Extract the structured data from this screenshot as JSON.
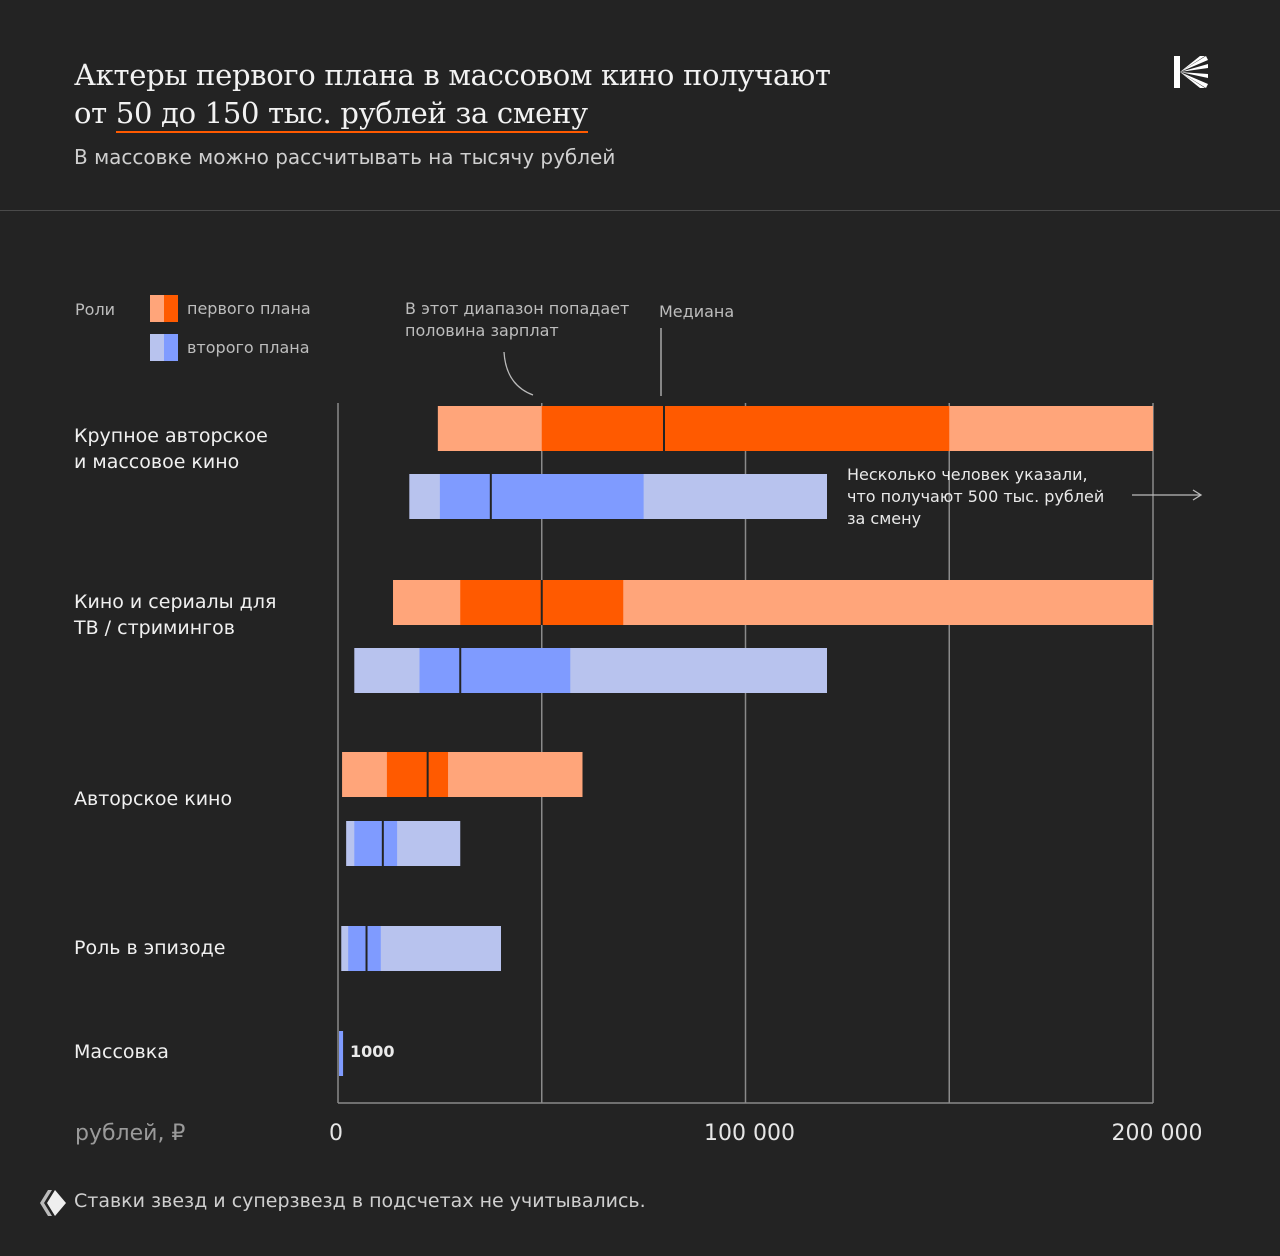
{
  "header": {
    "title_line1": "Актеры первого плана в массовом кино получают",
    "title_line2_prefix": "от ",
    "title_line2_highlight": "50 до 150 тыс. рублей за смену",
    "subtitle": "В массовке можно рассчитывать на тысячу рублей",
    "logo": "kommersant-style-k-logo"
  },
  "footer": {
    "note": "Ставки звезд и суперзвезд в подсчетах не учитывались.",
    "icon": "diamond-logo-icon"
  },
  "colors": {
    "background": "#232323",
    "primary_light": "#FFA57A",
    "primary": "#FF5A00",
    "secondary_light": "#B8C3EE",
    "secondary": "#7F9BFF",
    "grid": "#8a8a8a"
  },
  "chart_data": {
    "type": "range-bar",
    "title": "Актеры первого плана в массовом кино получают от 50 до 150 тыс. рублей за смену",
    "subtitle": "В массовке можно рассчитывать на тысячу рублей",
    "xlabel": "рублей, ₽",
    "xlim": [
      0,
      200000
    ],
    "xticks": [
      {
        "value": 0,
        "label": "0"
      },
      {
        "value": 100000,
        "label": "100 000"
      },
      {
        "value": 200000,
        "label": "200 000"
      }
    ],
    "gridlines": [
      50000,
      100000,
      150000,
      200000
    ],
    "legend": {
      "title": "Роли",
      "items": [
        {
          "name": "первого плана",
          "key": "lead"
        },
        {
          "name": "второго плана",
          "key": "support"
        }
      ],
      "placement": "top-left"
    },
    "annotations": {
      "iqr": "В этот диапазон попадает половина зарплат",
      "median": "Медиана",
      "outlier": "Несколько человек указали, что получают 500 тыс. рублей за смену"
    },
    "categories": [
      {
        "label_lines": [
          "Крупное авторское",
          "и массовое кино"
        ],
        "lead": {
          "min": 24500,
          "q1": 50000,
          "median": 80000,
          "q3": 150000,
          "max": 200000
        },
        "support": {
          "min": 17500,
          "q1": 25000,
          "median": 37500,
          "q3": 75000,
          "max": 120000
        }
      },
      {
        "label_lines": [
          "Кино и сериалы для",
          "ТВ / стримингов"
        ],
        "lead": {
          "min": 13500,
          "q1": 30000,
          "median": 50000,
          "q3": 70000,
          "max": 200000
        },
        "support": {
          "min": 4000,
          "q1": 20000,
          "median": 30000,
          "q3": 57000,
          "max": 120000
        }
      },
      {
        "label_lines": [
          "Авторское кино"
        ],
        "lead": {
          "min": 1000,
          "q1": 12000,
          "median": 22000,
          "q3": 27000,
          "max": 60000
        },
        "support": {
          "min": 2000,
          "q1": 4000,
          "median": 11000,
          "q3": 14500,
          "max": 30000
        }
      },
      {
        "label_lines": [
          "Роль в эпизоде"
        ],
        "lead": null,
        "support": {
          "min": 800,
          "q1": 2500,
          "median": 7000,
          "q3": 10500,
          "max": 40000
        }
      },
      {
        "label_lines": [
          "Массовка"
        ],
        "lead": null,
        "support": {
          "value": 1000,
          "label": "1000"
        }
      }
    ]
  }
}
